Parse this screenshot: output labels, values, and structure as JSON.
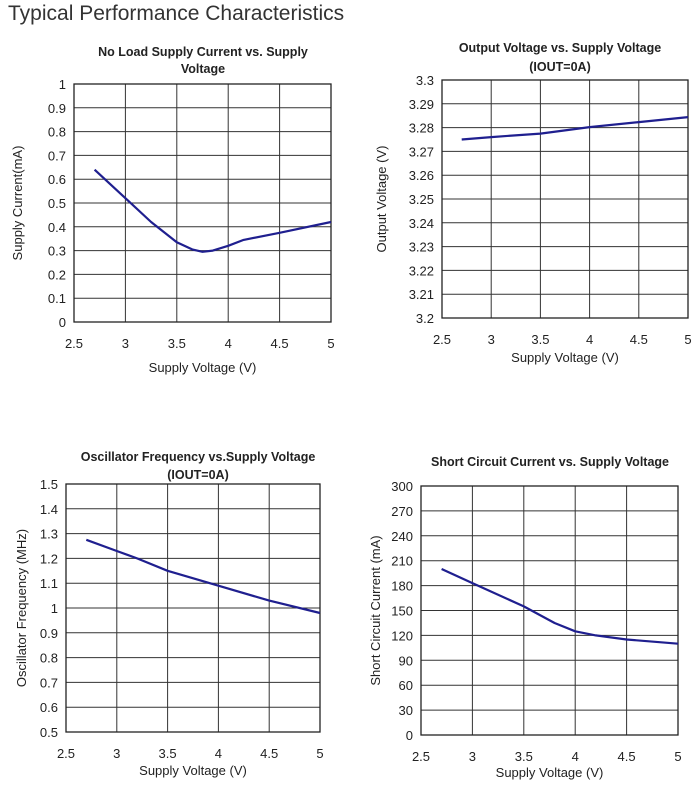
{
  "page_title": "Typical Performance Characteristics",
  "line_color": "#1f1f8f",
  "chart_data": [
    {
      "type": "line",
      "title": [
        "No Load Supply Current vs. Supply",
        "Voltage"
      ],
      "xlabel": "Supply Voltage (V)",
      "ylabel": "Supply Current(mA)",
      "xlim": [
        2.5,
        5
      ],
      "ylim": [
        0,
        1
      ],
      "xticks": [
        "2.5",
        "3",
        "3.5",
        "4",
        "4.5",
        "5"
      ],
      "yticks": [
        "0",
        "0.1",
        "0.2",
        "0.3",
        "0.4",
        "0.5",
        "0.6",
        "0.7",
        "0.8",
        "0.9",
        "1"
      ],
      "grid": true,
      "x": [
        2.7,
        3.0,
        3.25,
        3.5,
        3.65,
        3.75,
        3.85,
        4.0,
        4.15,
        4.5,
        5.0
      ],
      "y": [
        0.64,
        0.52,
        0.42,
        0.335,
        0.305,
        0.295,
        0.3,
        0.32,
        0.345,
        0.375,
        0.42
      ]
    },
    {
      "type": "line",
      "title": [
        "Output Voltage vs. Supply Voltage",
        "(IOUT=0A)"
      ],
      "xlabel": "Supply Voltage (V)",
      "ylabel": "Output Voltage (V)",
      "xlim": [
        2.5,
        5
      ],
      "ylim": [
        3.2,
        3.3
      ],
      "xticks": [
        "2.5",
        "3",
        "3.5",
        "4",
        "4.5",
        "5"
      ],
      "yticks": [
        "3.2",
        "3.21",
        "3.22",
        "3.23",
        "3.24",
        "3.25",
        "3.26",
        "3.27",
        "3.28",
        "3.29",
        "3.3"
      ],
      "grid": true,
      "x": [
        2.7,
        3.0,
        3.5,
        4.0,
        4.5,
        5.0
      ],
      "y": [
        3.275,
        3.276,
        3.2775,
        3.2802,
        3.2823,
        3.2844
      ]
    },
    {
      "type": "line",
      "title": [
        "Oscillator Frequency vs.Supply Voltage",
        "(IOUT=0A)"
      ],
      "xlabel": "Supply Voltage (V)",
      "ylabel": "Oscillator Frequency (MHz)",
      "xlim": [
        2.5,
        5
      ],
      "ylim": [
        0.5,
        1.5
      ],
      "xticks": [
        "2.5",
        "3",
        "3.5",
        "4",
        "4.5",
        "5"
      ],
      "yticks": [
        "0.5",
        "0.6",
        "0.7",
        "0.8",
        "0.9",
        "1",
        "1.1",
        "1.2",
        "1.3",
        "1.4",
        "1.5"
      ],
      "grid": true,
      "x": [
        2.7,
        3.0,
        3.2,
        3.5,
        4.0,
        4.5,
        5.0
      ],
      "y": [
        1.275,
        1.23,
        1.2,
        1.15,
        1.09,
        1.03,
        0.98
      ]
    },
    {
      "type": "line",
      "title": [
        "Short Circuit Current vs. Supply Voltage"
      ],
      "xlabel": "Supply Voltage (V)",
      "ylabel": "Short Circuit Current (mA)",
      "xlim": [
        2.5,
        5
      ],
      "ylim": [
        0,
        300
      ],
      "xticks": [
        "2.5",
        "3",
        "3.5",
        "4",
        "4.5",
        "5"
      ],
      "yticks": [
        "0",
        "30",
        "60",
        "90",
        "120",
        "150",
        "180",
        "210",
        "240",
        "270",
        "300"
      ],
      "grid": true,
      "x": [
        2.7,
        3.0,
        3.5,
        3.8,
        4.0,
        4.2,
        4.5,
        5.0
      ],
      "y": [
        200,
        183,
        155,
        135,
        125,
        120,
        115,
        110
      ]
    }
  ]
}
